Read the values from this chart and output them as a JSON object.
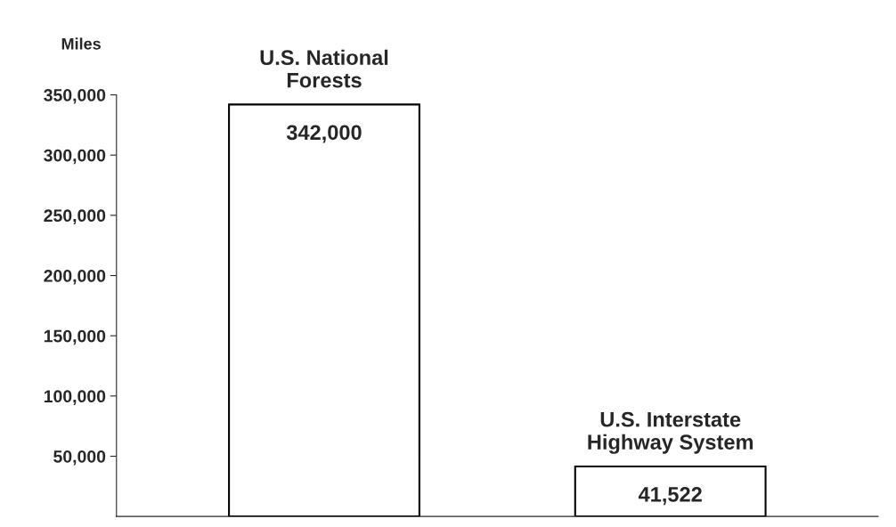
{
  "chart_data": {
    "type": "bar",
    "ylabel": "Miles",
    "categories": [
      "U.S. National\nForests",
      "U.S. Interstate\nHighway System"
    ],
    "values": [
      342000,
      41522
    ],
    "color": "#ffffff",
    "ylim": [
      0,
      350000
    ],
    "yticks": [
      {
        "value": 50000,
        "label": "50,000"
      },
      {
        "value": 100000,
        "label": "100,000"
      },
      {
        "value": 150000,
        "label": "150,000"
      },
      {
        "value": 200000,
        "label": "200,000"
      },
      {
        "value": 250000,
        "label": "250,000"
      },
      {
        "value": 300000,
        "label": "300,000"
      },
      {
        "value": 350000,
        "label": "350,000"
      }
    ],
    "value_labels": [
      "342,000",
      "41,522"
    ],
    "grid": false,
    "legend": false
  }
}
